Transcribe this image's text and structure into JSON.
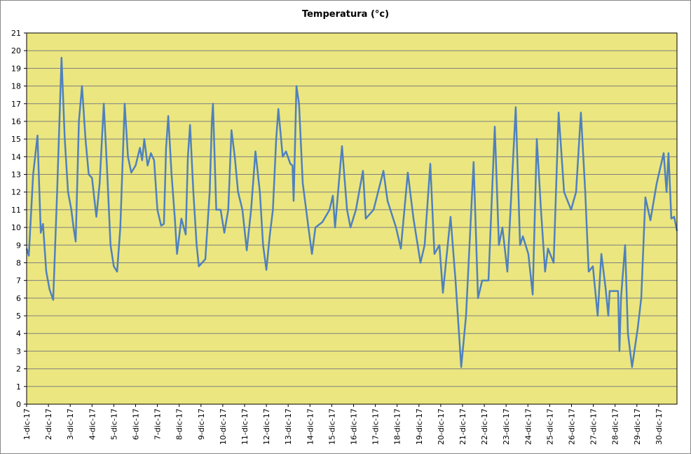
{
  "chart_data": {
    "type": "line",
    "title": "Temperatura (°c)",
    "x": [
      0,
      0.1,
      0.3,
      0.5,
      0.65,
      0.75,
      0.9,
      1.05,
      1.22,
      1.4,
      1.6,
      1.75,
      1.9,
      2.05,
      2.15,
      2.25,
      2.4,
      2.54,
      2.7,
      2.85,
      3.0,
      3.2,
      3.35,
      3.54,
      3.7,
      3.85,
      4.0,
      4.15,
      4.3,
      4.5,
      4.65,
      4.8,
      5.0,
      5.2,
      5.3,
      5.4,
      5.55,
      5.7,
      5.85,
      6.0,
      6.17,
      6.3,
      6.4,
      6.5,
      6.65,
      6.8,
      6.9,
      7.1,
      7.3,
      7.4,
      7.5,
      7.65,
      7.8,
      7.9,
      8.2,
      8.4,
      8.5,
      8.55,
      8.7,
      8.9,
      9.07,
      9.25,
      9.4,
      9.55,
      9.7,
      9.9,
      10.1,
      10.3,
      10.5,
      10.7,
      10.85,
      11.0,
      11.15,
      11.3,
      11.45,
      11.55,
      11.75,
      11.9,
      12.1,
      12.2,
      12.25,
      12.38,
      12.5,
      12.67,
      12.93,
      13.09,
      13.25,
      13.57,
      13.9,
      14.05,
      14.15,
      14.47,
      14.7,
      14.86,
      15.11,
      15.43,
      15.56,
      15.92,
      16.37,
      16.56,
      16.95,
      17.17,
      17.49,
      17.75,
      18.07,
      18.26,
      18.52,
      18.71,
      18.94,
      19.1,
      19.45,
      19.68,
      19.94,
      20.16,
      20.51,
      20.71,
      20.9,
      21.19,
      21.48,
      21.67,
      21.83,
      22.06,
      22.44,
      22.64,
      22.77,
      23.02,
      23.22,
      23.41,
      23.6,
      23.79,
      23.92,
      24.18,
      24.41,
      24.66,
      24.98,
      25.21,
      25.43,
      25.63,
      25.79,
      25.98,
      26.2,
      26.37,
      26.57,
      26.69,
      26.75,
      27.14,
      27.2,
      27.27,
      27.46,
      27.59,
      27.78,
      28.04,
      28.2,
      28.39,
      28.62,
      28.91,
      29.23,
      29.36,
      29.45,
      29.58,
      29.71,
      29.84
    ],
    "values": [
      8.8,
      8.4,
      13,
      15.2,
      9.7,
      10.2,
      7.5,
      6.5,
      5.9,
      12,
      19.6,
      15,
      12,
      11,
      10,
      9.2,
      16,
      18,
      15,
      13,
      12.8,
      10.6,
      12.5,
      17,
      13,
      9,
      7.8,
      7.5,
      10,
      17,
      14,
      13.1,
      13.5,
      14.5,
      13.8,
      15.0,
      13.5,
      14.2,
      13.8,
      11,
      10.1,
      10.2,
      14.5,
      16.3,
      13,
      10.5,
      8.5,
      10.5,
      9.6,
      14,
      15.8,
      12,
      9,
      7.8,
      8.2,
      12,
      16,
      17,
      11,
      11,
      9.7,
      11,
      15.5,
      14,
      12,
      11,
      8.7,
      11,
      14.3,
      12,
      9,
      7.6,
      9.5,
      11,
      15,
      16.7,
      14,
      14.3,
      13.6,
      13.5,
      11.5,
      18,
      17,
      12.5,
      10,
      8.5,
      10,
      10.3,
      11,
      11.8,
      10,
      14.6,
      11,
      10,
      11,
      13.2,
      10.5,
      11,
      13.2,
      11.5,
      10,
      8.8,
      13.1,
      10.5,
      8,
      9,
      13.6,
      8.5,
      9,
      6.3,
      10.6,
      7,
      2.1,
      5,
      13.7,
      6,
      7,
      7,
      15.7,
      9,
      10,
      7.5,
      16.8,
      9,
      9.5,
      8.5,
      6.2,
      15,
      11,
      7.5,
      8.8,
      8,
      16.5,
      12,
      11,
      12,
      16.5,
      12,
      7.5,
      7.8,
      5,
      8.5,
      6.5,
      5,
      6.4,
      6.4,
      3,
      6,
      9,
      4,
      2.1,
      4.3,
      6,
      11.7,
      10.4,
      12.5,
      14.2,
      12,
      14.2,
      10.5,
      10.6,
      9.8
    ],
    "color": "#4f81bd",
    "xlim": [
      0,
      29.84
    ],
    "xticks": [
      {
        "value": 0,
        "label": "1-dic-17"
      },
      {
        "value": 1,
        "label": "2-dic-17"
      },
      {
        "value": 2,
        "label": "3-dic-17"
      },
      {
        "value": 3,
        "label": "4-dic-17"
      },
      {
        "value": 4,
        "label": "5-dic-17"
      },
      {
        "value": 5,
        "label": "6-dic-17"
      },
      {
        "value": 6,
        "label": "7-dic-17"
      },
      {
        "value": 7,
        "label": "8-dic-17"
      },
      {
        "value": 8,
        "label": "9-dic-17"
      },
      {
        "value": 9,
        "label": "10-dic-17"
      },
      {
        "value": 10,
        "label": "11-dic-17"
      },
      {
        "value": 11,
        "label": "12-dic-17"
      },
      {
        "value": 12,
        "label": "13-dic-17"
      },
      {
        "value": 13,
        "label": "14-dic-17"
      },
      {
        "value": 14,
        "label": "15-dic-17"
      },
      {
        "value": 15,
        "label": "16-dic-17"
      },
      {
        "value": 16,
        "label": "17-dic-17"
      },
      {
        "value": 17,
        "label": "18-dic-17"
      },
      {
        "value": 18,
        "label": "19-dic-17"
      },
      {
        "value": 19,
        "label": "20-dic-17"
      },
      {
        "value": 20,
        "label": "21-dic-17"
      },
      {
        "value": 21,
        "label": "22-dic-17"
      },
      {
        "value": 22,
        "label": "23-dic-17"
      },
      {
        "value": 23,
        "label": "24-dic-17"
      },
      {
        "value": 24,
        "label": "25-dic-17"
      },
      {
        "value": 25,
        "label": "26-dic-17"
      },
      {
        "value": 26,
        "label": "27-dic-17"
      },
      {
        "value": 27,
        "label": "28-dic-17"
      },
      {
        "value": 28,
        "label": "29-dic-17"
      },
      {
        "value": 29,
        "label": "30-dic-17"
      }
    ],
    "ylim": [
      0,
      21
    ],
    "yticks": [
      0,
      1,
      2,
      3,
      4,
      5,
      6,
      7,
      8,
      9,
      10,
      11,
      12,
      13,
      14,
      15,
      16,
      17,
      18,
      19,
      20,
      21
    ],
    "grid": true,
    "background": "#ebe67f"
  }
}
